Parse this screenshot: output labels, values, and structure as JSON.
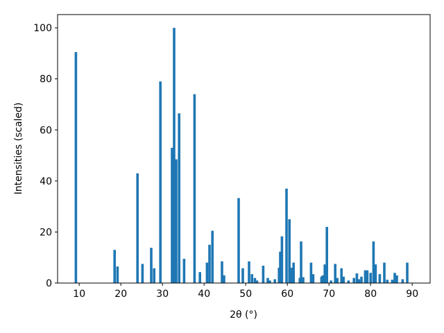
{
  "chart_data": {
    "type": "bar",
    "x_label": "2θ (°)",
    "y_label": "Intensities (scaled)",
    "color": "#1f77b4",
    "x": [
      9.2,
      18.5,
      19.2,
      24,
      25.2,
      27.3,
      28,
      29.5,
      32.3,
      32.8,
      33.3,
      34,
      35.2,
      37.7,
      39,
      40.7,
      41.3,
      42,
      44.3,
      44.8,
      48.3,
      49.3,
      50.8,
      51.5,
      52.2,
      52.7,
      54.2,
      55.3,
      55.8,
      57,
      58,
      58.3,
      58.7,
      59.8,
      60.5,
      61,
      61.5,
      63,
      63.3,
      63.8,
      65.7,
      66.2,
      68.2,
      68.5,
      69,
      69.5,
      70.5,
      71.5,
      72,
      73,
      73.5,
      74.7,
      76,
      76.7,
      77.2,
      77.8,
      78.7,
      79.2,
      80,
      80.7,
      81.2,
      82.2,
      83.3,
      84,
      85.2,
      85.8,
      86.3,
      87.7,
      88.8
    ],
    "values": [
      90.5,
      13,
      6.5,
      43,
      7.5,
      13.8,
      5.8,
      79,
      53,
      100,
      48.5,
      66.5,
      9.5,
      74,
      4.3,
      8,
      15,
      20.5,
      8.5,
      3,
      33.3,
      5.8,
      8.5,
      3.5,
      2,
      1,
      6.8,
      2,
      1,
      1.5,
      6,
      12.3,
      18.3,
      37,
      25,
      6,
      8,
      2,
      16.3,
      2.3,
      8,
      3.5,
      2.5,
      3,
      7.3,
      22,
      1,
      7.5,
      2,
      5.8,
      2.5,
      1,
      2,
      3.8,
      1.5,
      2.5,
      5,
      5,
      4,
      16.3,
      7.3,
      3.5,
      8,
      1.3,
      1.3,
      4,
      3,
      1.5,
      8
    ],
    "xlim": [
      4.8,
      94.3
    ],
    "ylim": [
      0,
      105.2
    ],
    "xticks": [
      10,
      20,
      30,
      40,
      50,
      60,
      70,
      80,
      90
    ],
    "yticks": [
      0,
      20,
      40,
      60,
      80,
      100
    ]
  }
}
